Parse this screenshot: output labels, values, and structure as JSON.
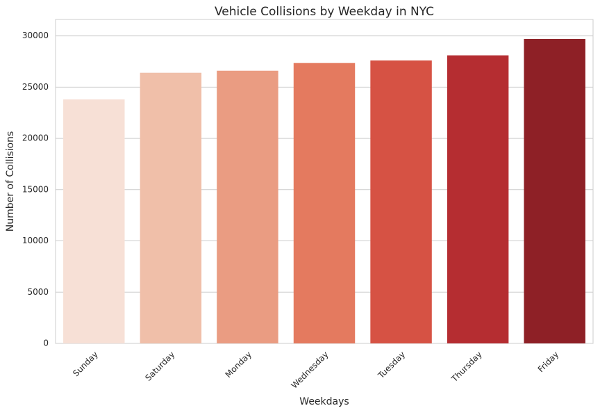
{
  "chart_data": {
    "type": "bar",
    "title": "Vehicle Collisions by Weekday in NYC",
    "x_label": "Weekdays",
    "y_label": "Number of Collisions",
    "categories": [
      "Sunday",
      "Saturday",
      "Monday",
      "Wednesday",
      "Tuesday",
      "Thursday",
      "Friday"
    ],
    "values": [
      23800,
      26400,
      26600,
      27350,
      27600,
      28100,
      29700
    ],
    "colors": [
      "#f7e0d6",
      "#f0bfa9",
      "#ea9c82",
      "#e47a5f",
      "#d65244",
      "#b52d31",
      "#8e2026"
    ],
    "ylim": [
      0,
      31600
    ],
    "yticks": [
      0,
      5000,
      10000,
      15000,
      20000,
      25000,
      30000
    ],
    "grid": true
  }
}
